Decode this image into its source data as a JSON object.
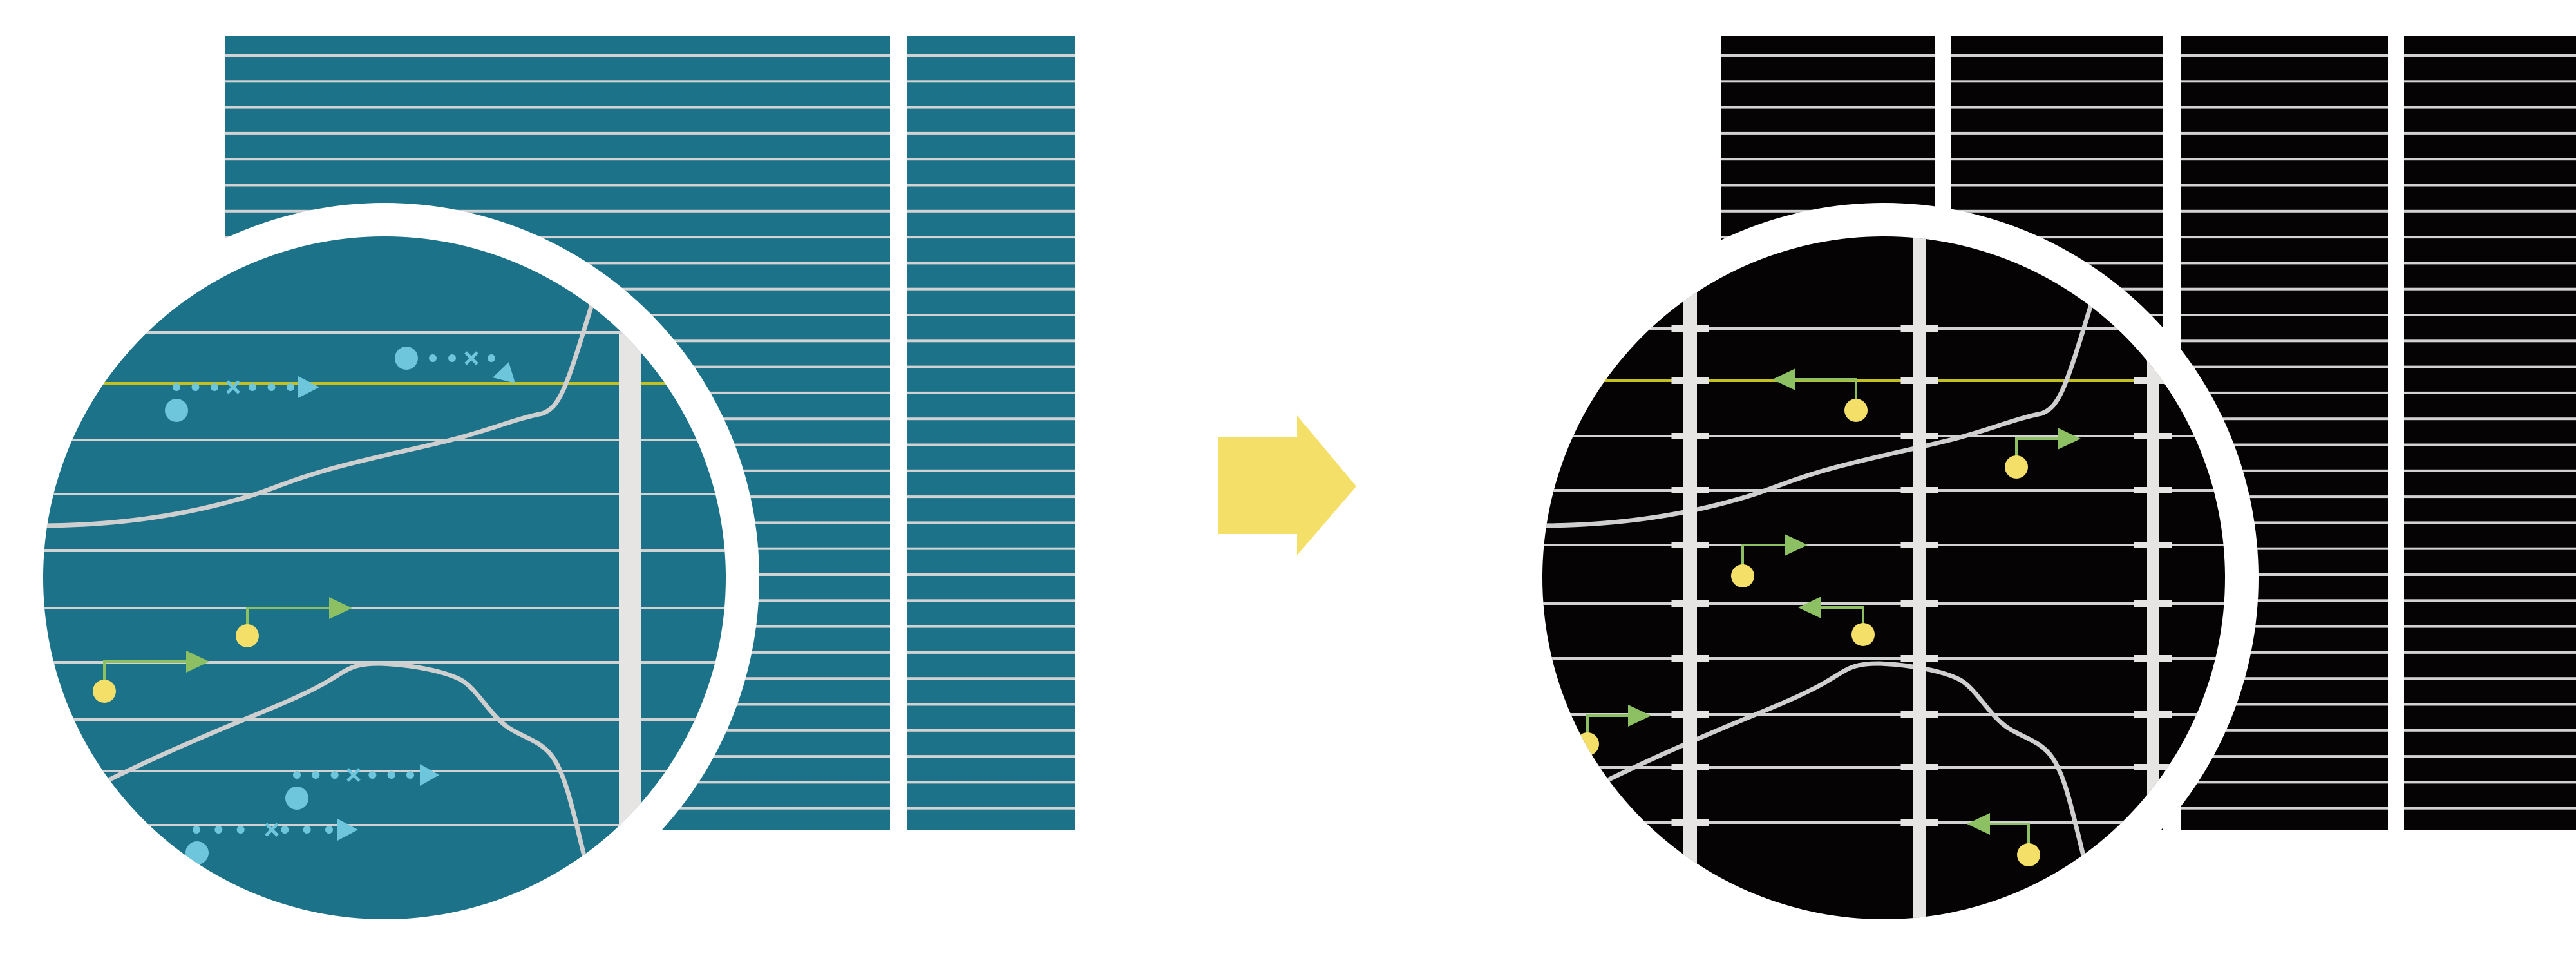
{
  "colors": {
    "background": "#ffffff",
    "before_panel": "#1b7289",
    "after_panel": "#050303",
    "grid_line": "#d2d2d2",
    "vertical_bar": "#e6e5e3",
    "curve": "#cfcfcf",
    "highlight_line": "#c4c020",
    "dotted_marker": "#6ec6dc",
    "step_arrow": "#8cc063",
    "origin_dot": "#f4df68",
    "transition_arrow": "#f4df68"
  },
  "icons": {
    "transition": "right-arrow-icon",
    "before_lens": "magnifier-lens-icon",
    "after_lens": "magnifier-lens-icon"
  }
}
